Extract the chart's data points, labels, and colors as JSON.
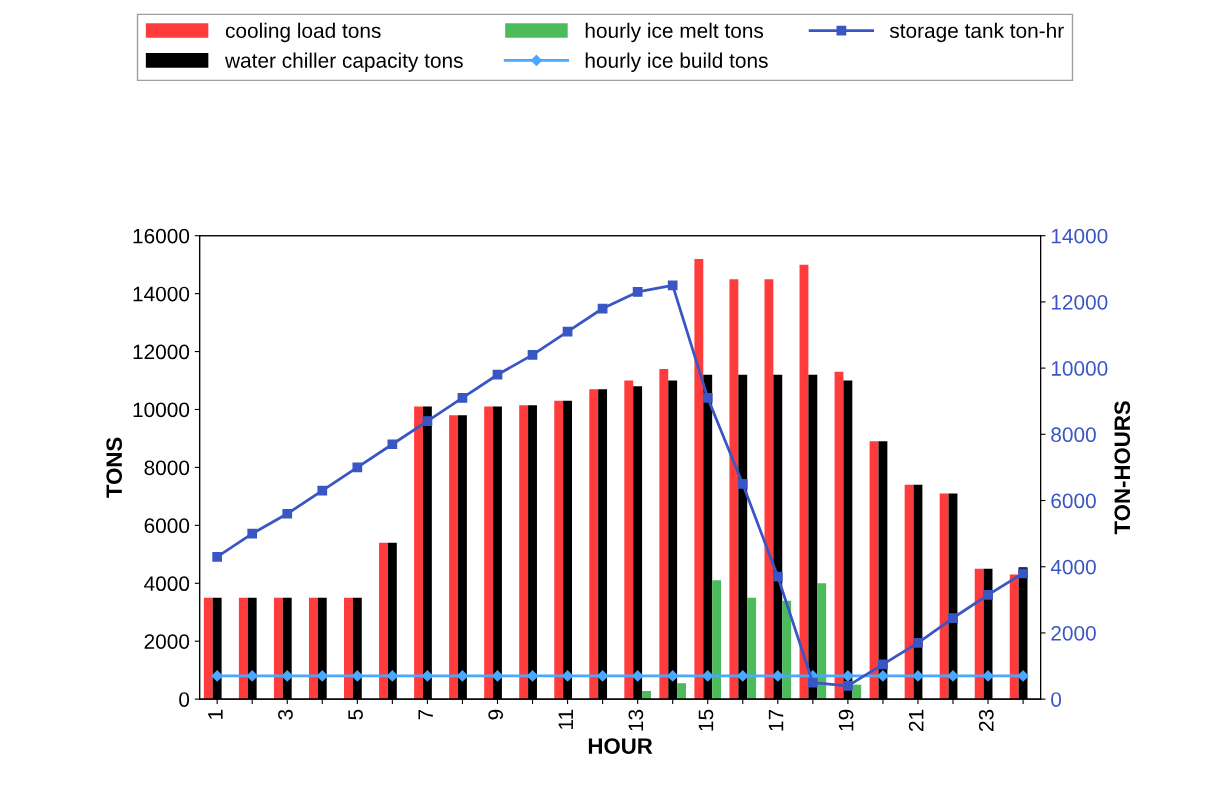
{
  "chart_data": {
    "type": "bar",
    "xlabel": "HOUR",
    "ylabel": "TONS",
    "y2label": "TON-HOURS",
    "categories": [
      "1",
      null,
      "3",
      null,
      "5",
      null,
      "7",
      null,
      "9",
      null,
      "11",
      null,
      "13",
      null,
      "15",
      null,
      "17",
      null,
      "19",
      null,
      "21",
      null,
      "23",
      null
    ],
    "series": [
      {
        "name": "cooling load tons",
        "color": "#ff3b3b",
        "values": [
          3500,
          3500,
          3500,
          3500,
          3500,
          5400,
          10100,
          9800,
          10100,
          10150,
          10300,
          10700,
          11000,
          11400,
          15200,
          14500,
          14500,
          15000,
          11300,
          8900,
          7400,
          7100,
          4500,
          4300
        ]
      },
      {
        "name": "water chiller capacity tons",
        "color": "#000000",
        "values": [
          3500,
          3500,
          3500,
          3500,
          3500,
          5400,
          10100,
          9800,
          10100,
          10150,
          10300,
          10700,
          10800,
          11000,
          11200,
          11200,
          11200,
          11200,
          11000,
          8900,
          7400,
          7100,
          4500,
          4550
        ]
      },
      {
        "name": "hourly ice melt tons",
        "color": "#4cbb5c",
        "values": [
          0,
          0,
          0,
          0,
          0,
          0,
          0,
          0,
          0,
          0,
          0,
          0,
          280,
          550,
          4100,
          3500,
          3400,
          4000,
          500,
          0,
          0,
          0,
          0,
          0
        ]
      },
      {
        "name": "hourly ice build tons",
        "type": "line",
        "color": "#4aa8ff",
        "marker": "diamond",
        "values": [
          800,
          800,
          800,
          800,
          800,
          800,
          800,
          800,
          800,
          800,
          800,
          800,
          800,
          800,
          800,
          800,
          800,
          800,
          800,
          800,
          800,
          800,
          800,
          800
        ]
      },
      {
        "name": "storage tank ton-hr",
        "type": "line",
        "axis": "y2",
        "color": "#3a55c4",
        "marker": "square",
        "values": [
          4300,
          5000,
          5600,
          6300,
          7000,
          7700,
          8400,
          9100,
          9800,
          10400,
          11100,
          11800,
          12300,
          12500,
          9100,
          6500,
          3700,
          500,
          400,
          1050,
          1700,
          2450,
          3150,
          3800
        ]
      }
    ],
    "ylim": [
      0,
      16000
    ],
    "yticks": [
      0,
      2000,
      4000,
      6000,
      8000,
      10000,
      12000,
      14000,
      16000
    ],
    "y2lim": [
      0,
      14000
    ],
    "y2ticks": [
      0,
      2000,
      4000,
      6000,
      8000,
      10000,
      12000,
      14000
    ],
    "legend": "top",
    "grid": false
  }
}
